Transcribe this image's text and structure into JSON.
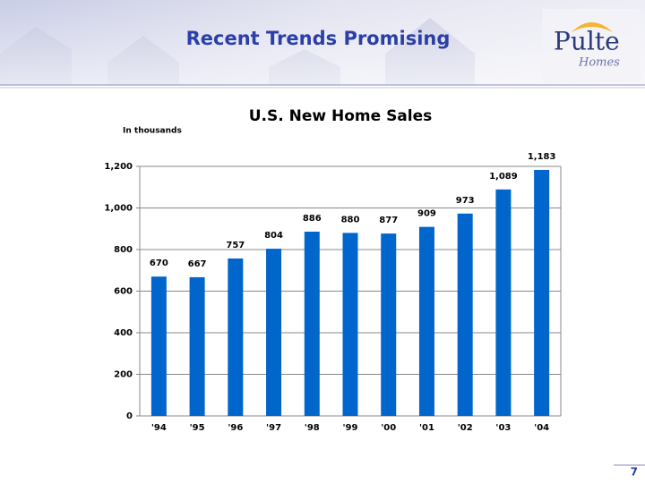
{
  "header": {
    "title": "Recent Trends Promising"
  },
  "logo": {
    "name": "Pulte",
    "tagline": "Homes"
  },
  "page_number": "7",
  "chart_data": {
    "type": "bar",
    "title": "U.S. New Home Sales",
    "subtitle": "In thousands",
    "categories": [
      "'94",
      "'95",
      "'96",
      "'97",
      "'98",
      "'99",
      "'00",
      "'01",
      "'02",
      "'03",
      "'04"
    ],
    "values": [
      670,
      667,
      757,
      804,
      886,
      880,
      877,
      909,
      973,
      1089,
      1183
    ],
    "value_labels": [
      "670",
      "667",
      "757",
      "804",
      "886",
      "880",
      "877",
      "909",
      "973",
      "1,089",
      "1,183"
    ],
    "color": "#0066cc",
    "ylim": [
      0,
      1200
    ],
    "yticks": [
      0,
      200,
      400,
      600,
      800,
      {
        "value": 1000,
        "label": "1,000"
      },
      {
        "value": 1200,
        "label": "1,200"
      }
    ],
    "grid": true
  }
}
